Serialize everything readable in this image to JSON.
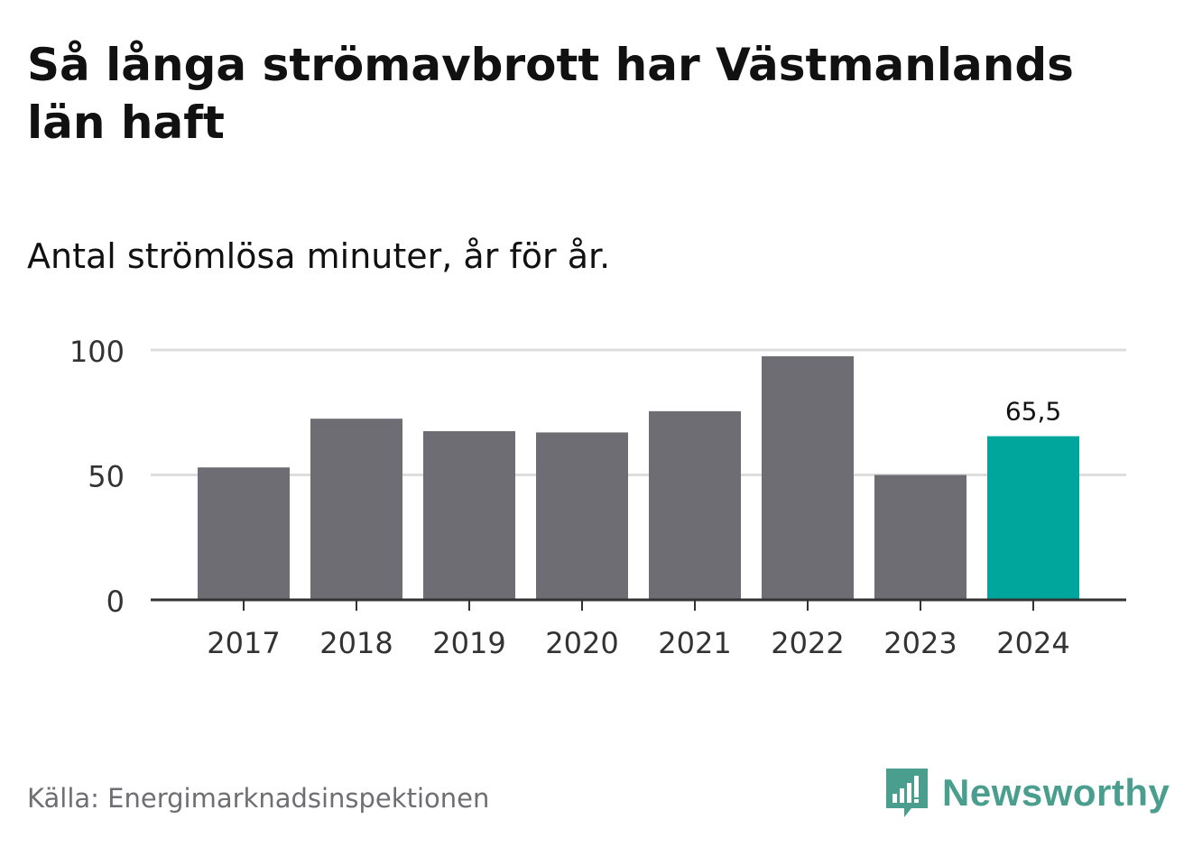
{
  "header": {
    "title": "Så långa strömavbrott har Västmanlands län haft",
    "subtitle": "Antal strömlösa minuter, år för år."
  },
  "footer": {
    "source": "Källa: Energimarknadsinspektionen",
    "brand": "Newsworthy",
    "brand_icon": "bar-chart-speech-bubble-icon"
  },
  "colors": {
    "bar": "#6e6d73",
    "highlight": "#00a59b",
    "grid": "#dddddd",
    "axis": "#333333",
    "brand": "#4a9e8e"
  },
  "chart_data": {
    "type": "bar",
    "title": "Så långa strömavbrott har Västmanlands län haft",
    "subtitle": "Antal strömlösa minuter, år för år.",
    "xlabel": "",
    "ylabel": "",
    "categories": [
      "2017",
      "2018",
      "2019",
      "2020",
      "2021",
      "2022",
      "2023",
      "2024"
    ],
    "values": [
      53,
      72.5,
      67.5,
      67,
      75.5,
      97.5,
      50,
      65.5
    ],
    "highlight_index": 7,
    "data_labels": [
      {
        "index": 7,
        "text": "65,5"
      }
    ],
    "ylim": [
      0,
      100
    ],
    "yticks": [
      0,
      50,
      100
    ],
    "ytick_labels": [
      "0",
      "50",
      "100"
    ],
    "grid": true,
    "legend": "none"
  }
}
